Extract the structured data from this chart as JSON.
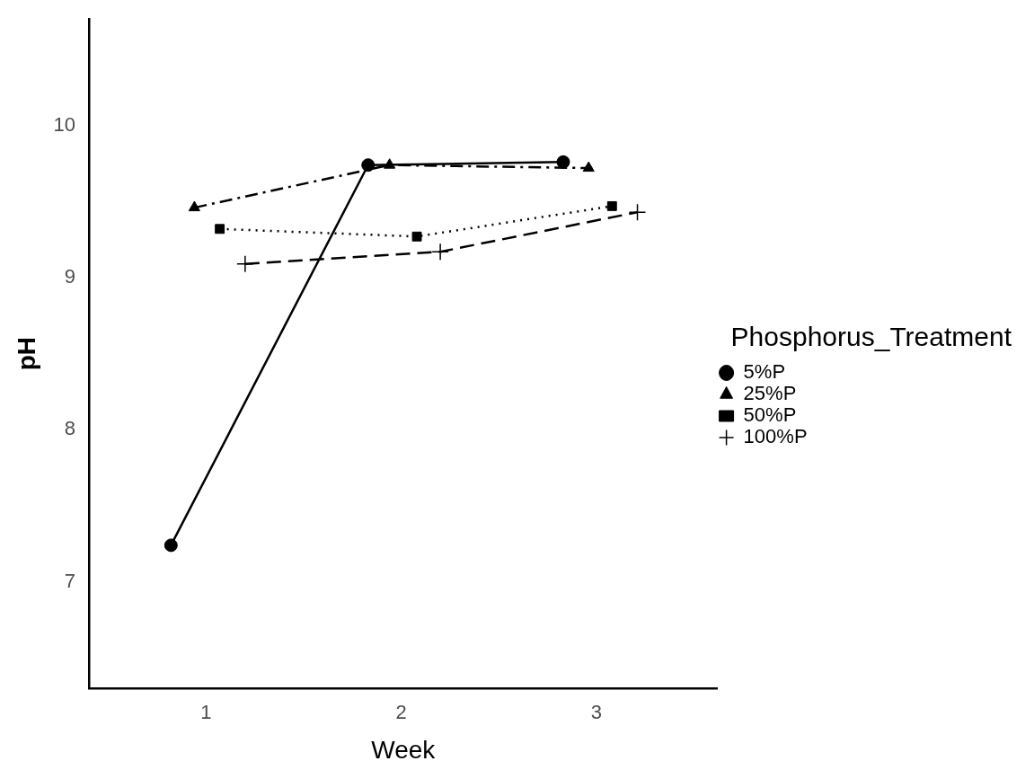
{
  "chart_data": {
    "type": "line",
    "xlabel": "Week",
    "ylabel": "pH",
    "legend_title": "Phosphorus_Treatment",
    "legend": "right",
    "grid": false,
    "xlim": [
      0.4,
      3.62
    ],
    "xticks": [
      1,
      2,
      3
    ],
    "ylim": [
      6.3,
      10.7
    ],
    "yticks": [
      7,
      8,
      9,
      10
    ],
    "series": [
      {
        "name": "5%P",
        "color": "#000000",
        "marker": "circle",
        "line_style": "solid",
        "x": [
          0.82,
          1.83,
          2.83
        ],
        "values": [
          7.24,
          9.74,
          9.76
        ]
      },
      {
        "name": "25%P",
        "color": "#000000",
        "marker": "triangle",
        "line_style": "dashdot",
        "x": [
          0.94,
          1.94,
          2.96
        ],
        "values": [
          9.46,
          9.74,
          9.72
        ]
      },
      {
        "name": "50%P",
        "color": "#000000",
        "marker": "square",
        "line_style": "dotted",
        "x": [
          1.07,
          2.08,
          3.08
        ],
        "values": [
          9.32,
          9.27,
          9.47
        ]
      },
      {
        "name": "100%P",
        "color": "#000000",
        "marker": "cross",
        "line_style": "dashed",
        "x": [
          1.2,
          2.2,
          3.21
        ],
        "values": [
          9.09,
          9.17,
          9.43
        ]
      }
    ]
  }
}
